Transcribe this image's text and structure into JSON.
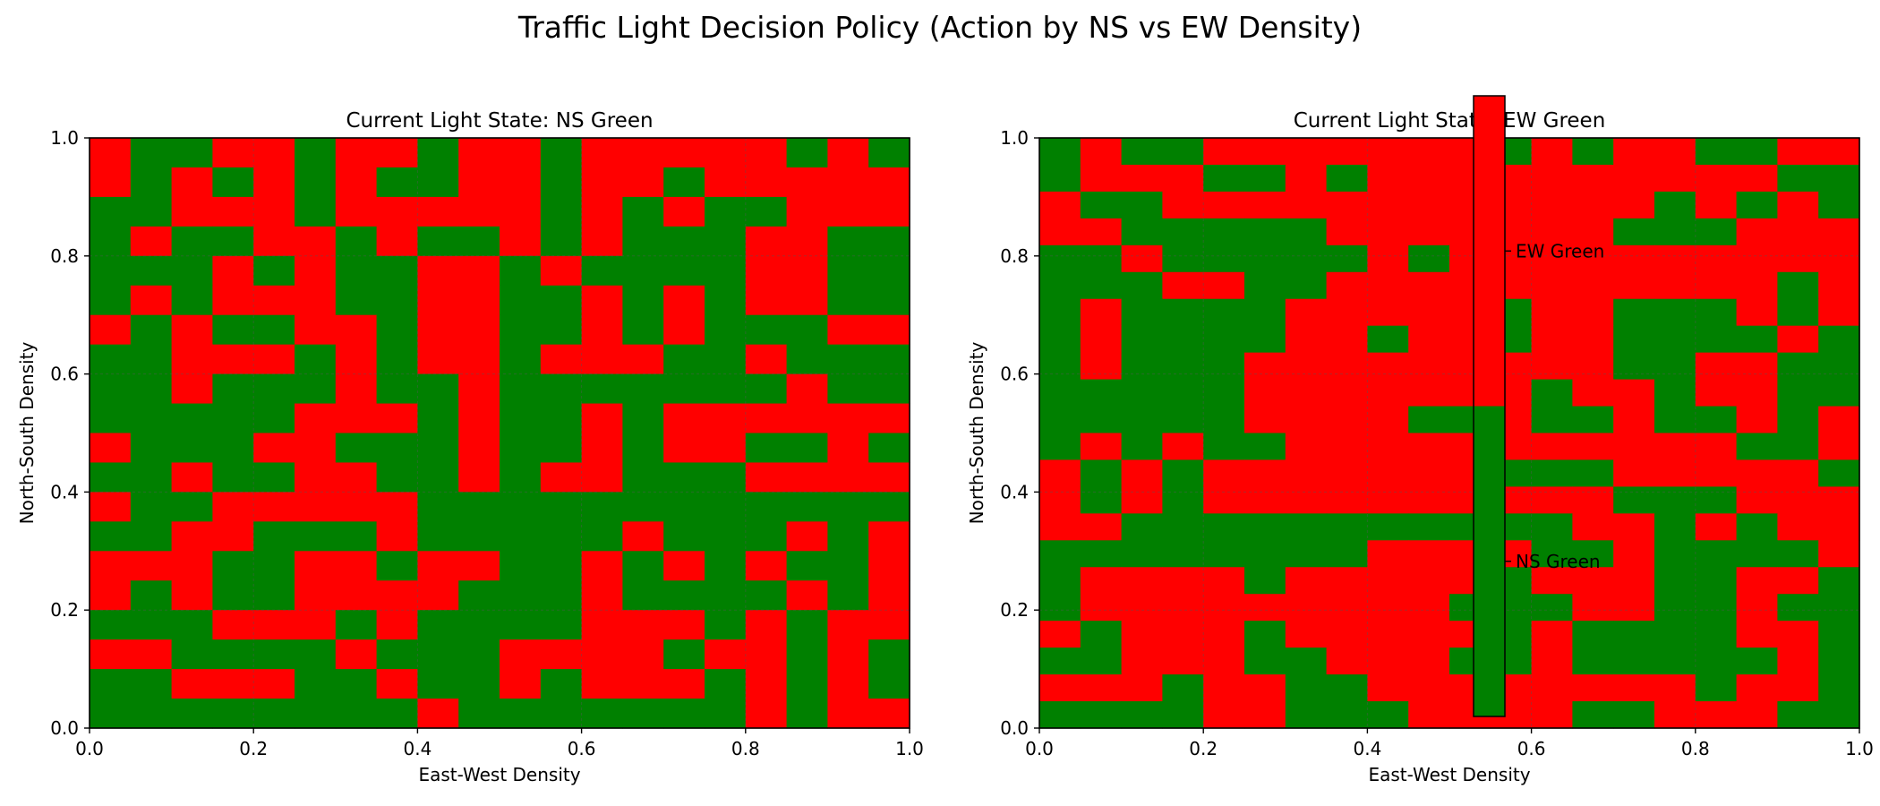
{
  "chart_data": {
    "suptitle": "Traffic Light Decision Policy (Action by NS vs EW Density)",
    "colors": {
      "ns_green": "#008000",
      "ew_green": "#ff0000",
      "grid": "#555555"
    },
    "colorbar": {
      "ticks": [
        "EW Green",
        "NS Green"
      ]
    },
    "panels": [
      {
        "type": "heatmap",
        "title": "Current Light State: NS Green",
        "xlabel": "East-West Density",
        "ylabel": "North-South Density",
        "xlim": [
          0,
          1
        ],
        "ylim": [
          0,
          1
        ],
        "xticks": [
          "0.0",
          "0.2",
          "0.4",
          "0.6",
          "0.8",
          "1.0"
        ],
        "yticks": [
          "0.0",
          "0.2",
          "0.4",
          "0.6",
          "0.8",
          "1.0"
        ],
        "grid": true,
        "legend_codes": {
          "R": "EW Green",
          "G": "NS Green"
        },
        "rows_top_to_bottom": [
          "RGGRRGRRGRRGRRRRRGRG",
          "RGRGRGRGGRRGRRGRRRRR",
          "GGRRRGRRRRRGRGRGGRRR",
          "GRGGRRGRGGRGRGGGRRGG",
          "GGGRGRGGRRGRGGGGRRGG",
          "GRGRRRGGRRGGRGRGRRGG",
          "RGRGGRRGRRGGRGRGGGRR",
          "GGRRRGRGRRGRRRGGRGGG",
          "GGRGGGRGGRGGGGGGGRGG",
          "GGGGGRRRGRGGRGRRRRRR",
          "RGGGRRGGGRGGRGRRGGRG",
          "GGRGGRRGGRGRRGGGRRRR",
          "RGGRRRRRGGGGGGGGGGGG",
          "GGRRGGGRGGGGGRGGGRGR",
          "RRRGGRRGRRGGRGRGRGGR",
          "RGRGGRRRRGGGRGGGGRGR",
          "GGGRRRGRGGGGRRRGRGRR",
          "RRGGGGRGGGRRRRGRRGRG",
          "GGRRRGGRGGRGRRRGRGRG",
          "GGGGGGGGRGGGGGGGRGRR"
        ]
      },
      {
        "type": "heatmap",
        "title": "Current Light State: EW Green",
        "xlabel": "East-West Density",
        "ylabel": "North-South Density",
        "xlim": [
          0,
          1
        ],
        "ylim": [
          0,
          1
        ],
        "xticks": [
          "0.0",
          "0.2",
          "0.4",
          "0.6",
          "0.8",
          "1.0"
        ],
        "yticks": [
          "0.0",
          "0.2",
          "0.4",
          "0.6",
          "0.8",
          "1.0"
        ],
        "grid": true,
        "legend_codes": {
          "R": "EW Green",
          "G": "NS Green"
        },
        "rows_top_to_bottom": [
          "GRGGRRRRRRRGRGRRGGRR",
          "GRRRGGRGRRRRRRRRRRGG",
          "RGGRRRRRRRRRRRRGRGRG",
          "RRGGGGGRRRRRRRGGGRRR",
          "GGRGGGGGRGRRRRRRRRRR",
          "GGGRRGGRRRRRRRRRRRGR",
          "GRGGGGRRRRRGRRGGGRGR",
          "GRGGGGRRGRRGRRGGGGRG",
          "GRGGGRRRRRRRRRGGRRGG",
          "GGGGGRRRRRRRGRRGRRGG",
          "GGGGGRRRRGGRGGRGGRGR",
          "GRGRGGRRRRRRRRRRRGGR",
          "RGRGRRRRRRRGGGRRRRRG",
          "RGRGRRRRRRRRRRGGGRRR",
          "RRGGGGGGGGGGGRRGRGRR",
          "GGGGGGGGRRRRGGRGGGGR",
          "GRRRRGRRRRRGRRRGGRRG",
          "GRRRRRRRRRGGGRRGGRGG",
          "RGRRRGRRRRRGRGGGGRRG",
          "GGRRRGGRRRGGRGGGGGRG",
          "RRRGRRGGRRRRRRRRGRRG",
          "GGGGRRGGGRRRRGGRRRGG"
        ]
      }
    ]
  }
}
